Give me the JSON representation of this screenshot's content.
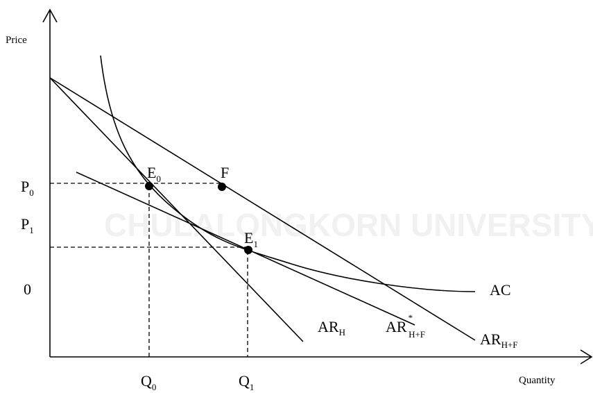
{
  "axes": {
    "y_label": "Price",
    "x_label": "Quantity"
  },
  "watermark": "CHULALONGKORN UNIVERSITY",
  "price_labels": [
    {
      "main": "P",
      "sub": "0"
    },
    {
      "main": "P",
      "sub": "1"
    },
    {
      "main": "0"
    }
  ],
  "quantity_labels": [
    {
      "main": "Q",
      "sub": "0"
    },
    {
      "main": "Q",
      "sub": "1"
    }
  ],
  "points": [
    {
      "main": "E",
      "sub": "0"
    },
    {
      "main": "F"
    },
    {
      "main": "E",
      "sub": "1"
    }
  ],
  "curves": [
    {
      "main": "AC"
    },
    {
      "main": "AR",
      "sub": "H"
    },
    {
      "main": "AR",
      "sup": "*",
      "sub": "H+F"
    },
    {
      "main": "AR",
      "sub": "H+F"
    }
  ]
}
